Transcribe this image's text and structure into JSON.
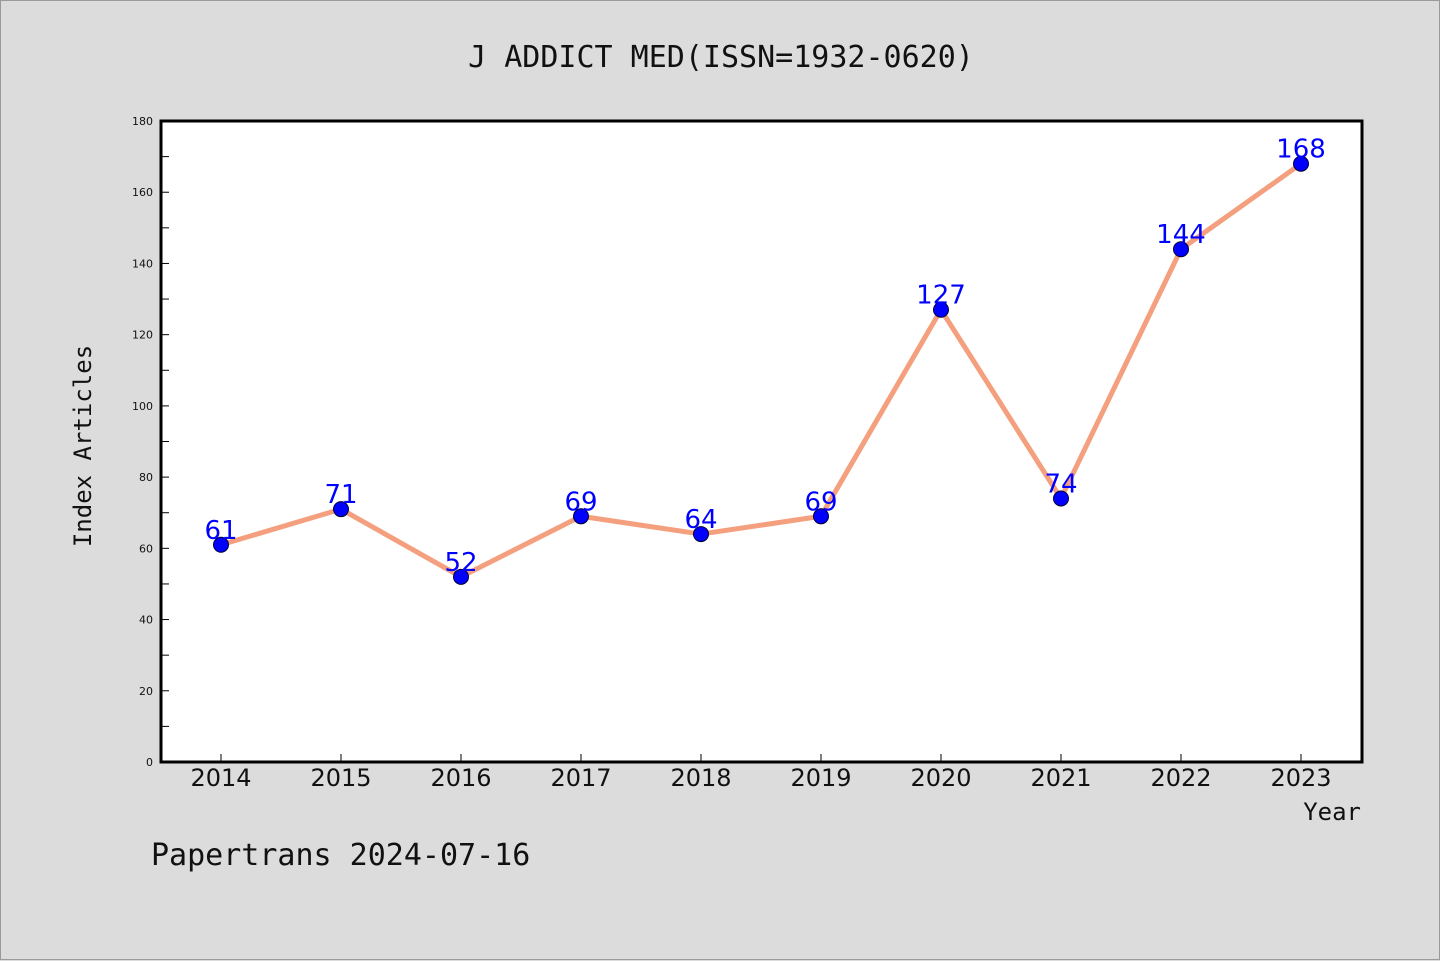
{
  "chart_data": {
    "type": "line",
    "title": "J ADDICT MED(ISSN=1932-0620)",
    "xlabel": "Year",
    "ylabel": "Index Articles",
    "categories": [
      "2014",
      "2015",
      "2016",
      "2017",
      "2018",
      "2019",
      "2020",
      "2021",
      "2022",
      "2023"
    ],
    "series": [
      {
        "values": [
          61,
          71,
          52,
          69,
          64,
          69,
          127,
          74,
          144,
          168
        ]
      }
    ],
    "data_labels": [
      "61",
      "71",
      "52",
      "69",
      "64",
      "69",
      "127",
      "74",
      "144",
      "168"
    ],
    "ylim": [
      0,
      180
    ],
    "yticks": [
      "0",
      "20",
      "40",
      "60",
      "80",
      "100",
      "120",
      "140",
      "160",
      "180"
    ],
    "grid": false,
    "line_color": "#f4a07f",
    "marker_color": "#0000ff",
    "label_color": "#0000ff"
  },
  "footer": "Papertrans 2024-07-16"
}
